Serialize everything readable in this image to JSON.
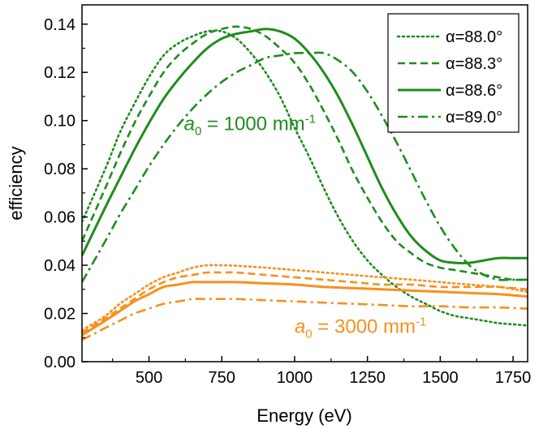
{
  "chart_data": {
    "type": "line",
    "xlabel": "Energy (eV)",
    "ylabel": "efficiency",
    "xlim": [
      270,
      1800
    ],
    "ylim": [
      0.0,
      0.148
    ],
    "xticks": [
      {
        "value": 500,
        "label": "500"
      },
      {
        "value": 750,
        "label": "750"
      },
      {
        "value": 1000,
        "label": "1000"
      },
      {
        "value": 1250,
        "label": "1250"
      },
      {
        "value": 1500,
        "label": "1500"
      },
      {
        "value": 1750,
        "label": "1750"
      }
    ],
    "yticks": [
      {
        "value": 0.0,
        "label": "0.00"
      },
      {
        "value": 0.02,
        "label": "0.02"
      },
      {
        "value": 0.04,
        "label": "0.04"
      },
      {
        "value": 0.06,
        "label": "0.06"
      },
      {
        "value": 0.08,
        "label": "0.08"
      },
      {
        "value": 0.1,
        "label": "0.10"
      },
      {
        "value": 0.12,
        "label": "0.12"
      },
      {
        "value": 0.14,
        "label": "0.14"
      }
    ],
    "grid": false,
    "legend": {
      "position": "top-right",
      "entries": [
        {
          "label": "α=88.0°",
          "dash": "dotted"
        },
        {
          "label": "α=88.3°",
          "dash": "dashed"
        },
        {
          "label": "α=88.6°",
          "dash": "solid"
        },
        {
          "label": "α=89.0°",
          "dash": "dashdot"
        }
      ]
    },
    "annotations": [
      {
        "base": "a",
        "sub": "0",
        "main": " = 1000 mm",
        "sup": "-1",
        "color": "#1e8c1e",
        "x": 620,
        "y": 0.096
      },
      {
        "base": "a",
        "sub": "0",
        "main": " = 3000 mm",
        "sup": "-1",
        "color": "#f7901e",
        "x": 1000,
        "y": 0.012
      }
    ],
    "colors": {
      "green": "#1e8c1e",
      "orange": "#f7901e"
    },
    "series": [
      {
        "group": "a0=1000",
        "angle": "88.0",
        "dash": "dotted",
        "color": "#1e8c1e",
        "x": [
          270,
          350,
          400,
          450,
          500,
          550,
          600,
          650,
          700,
          750,
          800,
          850,
          900,
          950,
          1000,
          1050,
          1100,
          1150,
          1200,
          1250,
          1300,
          1350,
          1400,
          1450,
          1500,
          1550,
          1600,
          1650,
          1700,
          1750,
          1800
        ],
        "y": [
          0.058,
          0.08,
          0.095,
          0.107,
          0.118,
          0.127,
          0.132,
          0.135,
          0.137,
          0.137,
          0.134,
          0.128,
          0.12,
          0.11,
          0.097,
          0.085,
          0.072,
          0.06,
          0.05,
          0.042,
          0.036,
          0.031,
          0.027,
          0.024,
          0.021,
          0.019,
          0.018,
          0.017,
          0.016,
          0.0155,
          0.015
        ]
      },
      {
        "group": "a0=1000",
        "angle": "88.3",
        "dash": "dashed",
        "color": "#1e8c1e",
        "x": [
          270,
          350,
          400,
          450,
          500,
          550,
          600,
          650,
          700,
          750,
          800,
          850,
          900,
          950,
          1000,
          1050,
          1100,
          1150,
          1200,
          1250,
          1300,
          1350,
          1400,
          1450,
          1500,
          1550,
          1600,
          1650,
          1700,
          1750,
          1800
        ],
        "y": [
          0.05,
          0.072,
          0.086,
          0.099,
          0.11,
          0.12,
          0.127,
          0.132,
          0.136,
          0.138,
          0.139,
          0.138,
          0.135,
          0.13,
          0.124,
          0.115,
          0.104,
          0.092,
          0.079,
          0.068,
          0.058,
          0.05,
          0.045,
          0.041,
          0.039,
          0.038,
          0.037,
          0.036,
          0.035,
          0.034,
          0.034
        ]
      },
      {
        "group": "a0=1000",
        "angle": "88.6",
        "dash": "solid",
        "color": "#1e8c1e",
        "x": [
          270,
          350,
          400,
          450,
          500,
          550,
          600,
          650,
          700,
          750,
          800,
          850,
          900,
          950,
          1000,
          1050,
          1100,
          1150,
          1200,
          1250,
          1300,
          1350,
          1400,
          1450,
          1500,
          1550,
          1600,
          1650,
          1700,
          1750,
          1800
        ],
        "y": [
          0.044,
          0.064,
          0.076,
          0.088,
          0.099,
          0.109,
          0.117,
          0.124,
          0.13,
          0.134,
          0.136,
          0.137,
          0.138,
          0.137,
          0.134,
          0.128,
          0.12,
          0.11,
          0.098,
          0.085,
          0.072,
          0.061,
          0.052,
          0.046,
          0.042,
          0.041,
          0.041,
          0.042,
          0.043,
          0.043,
          0.043
        ]
      },
      {
        "group": "a0=1000",
        "angle": "89.0",
        "dash": "dashdot",
        "color": "#1e8c1e",
        "x": [
          270,
          350,
          400,
          450,
          500,
          550,
          600,
          650,
          700,
          750,
          800,
          850,
          900,
          950,
          1000,
          1050,
          1100,
          1150,
          1200,
          1250,
          1300,
          1350,
          1400,
          1450,
          1500,
          1550,
          1600,
          1650,
          1700,
          1750,
          1800
        ],
        "y": [
          0.033,
          0.05,
          0.061,
          0.071,
          0.081,
          0.09,
          0.098,
          0.105,
          0.111,
          0.116,
          0.12,
          0.123,
          0.126,
          0.127,
          0.128,
          0.128,
          0.128,
          0.125,
          0.12,
          0.112,
          0.102,
          0.091,
          0.079,
          0.067,
          0.056,
          0.047,
          0.04,
          0.036,
          0.034,
          0.034,
          0.034
        ]
      },
      {
        "group": "a0=3000",
        "angle": "88.0",
        "dash": "dotted",
        "color": "#f7901e",
        "x": [
          270,
          350,
          400,
          450,
          500,
          550,
          600,
          650,
          700,
          750,
          800,
          900,
          1000,
          1100,
          1200,
          1300,
          1400,
          1500,
          1600,
          1700,
          1800
        ],
        "y": [
          0.013,
          0.019,
          0.024,
          0.028,
          0.032,
          0.035,
          0.037,
          0.039,
          0.04,
          0.04,
          0.0398,
          0.039,
          0.038,
          0.037,
          0.036,
          0.035,
          0.034,
          0.033,
          0.032,
          0.031,
          0.029
        ]
      },
      {
        "group": "a0=3000",
        "angle": "88.3",
        "dash": "dashed",
        "color": "#f7901e",
        "x": [
          270,
          350,
          400,
          450,
          500,
          550,
          600,
          650,
          700,
          750,
          800,
          900,
          1000,
          1100,
          1200,
          1300,
          1400,
          1500,
          1600,
          1700,
          1800
        ],
        "y": [
          0.012,
          0.018,
          0.022,
          0.026,
          0.03,
          0.033,
          0.035,
          0.036,
          0.037,
          0.037,
          0.037,
          0.036,
          0.035,
          0.034,
          0.033,
          0.032,
          0.032,
          0.031,
          0.031,
          0.031,
          0.03
        ]
      },
      {
        "group": "a0=3000",
        "angle": "88.6",
        "dash": "solid",
        "color": "#f7901e",
        "x": [
          270,
          350,
          400,
          450,
          500,
          550,
          600,
          650,
          700,
          750,
          800,
          900,
          1000,
          1100,
          1200,
          1300,
          1400,
          1500,
          1600,
          1700,
          1800
        ],
        "y": [
          0.011,
          0.017,
          0.021,
          0.025,
          0.028,
          0.031,
          0.032,
          0.033,
          0.033,
          0.033,
          0.033,
          0.0325,
          0.032,
          0.031,
          0.0305,
          0.03,
          0.0295,
          0.029,
          0.0285,
          0.028,
          0.027
        ]
      },
      {
        "group": "a0=3000",
        "angle": "89.0",
        "dash": "dashdot",
        "color": "#f7901e",
        "x": [
          270,
          350,
          400,
          450,
          500,
          550,
          600,
          650,
          700,
          750,
          800,
          900,
          1000,
          1100,
          1200,
          1300,
          1400,
          1500,
          1600,
          1700,
          1800
        ],
        "y": [
          0.009,
          0.014,
          0.017,
          0.02,
          0.022,
          0.024,
          0.025,
          0.026,
          0.026,
          0.026,
          0.026,
          0.0255,
          0.025,
          0.0245,
          0.024,
          0.0235,
          0.023,
          0.023,
          0.0225,
          0.0225,
          0.022
        ]
      }
    ]
  }
}
